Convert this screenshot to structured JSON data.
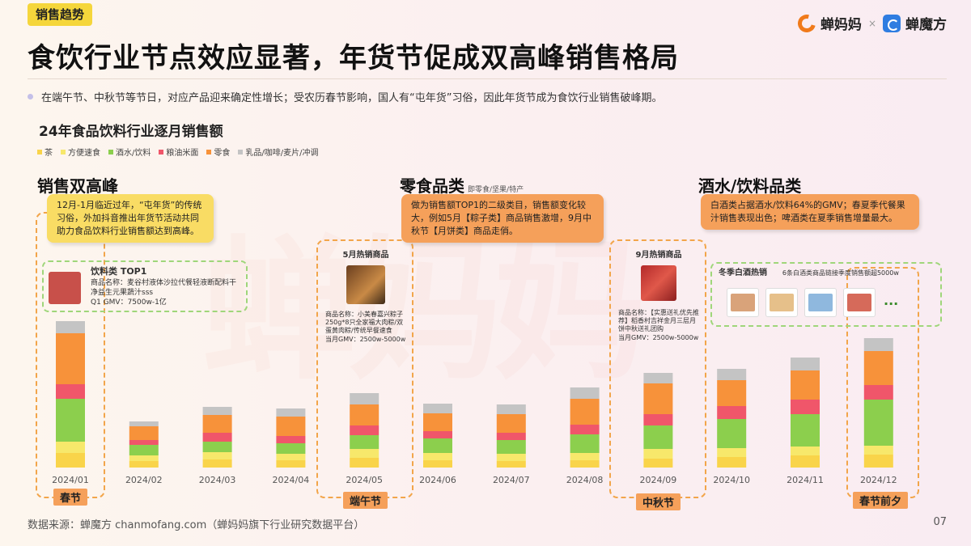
{
  "header": {
    "tag": "销售趋势",
    "brand1": "蝉妈妈",
    "brand_sep": "×",
    "brand2": "蝉魔方",
    "title": "食饮行业节点效应显著，年货节促成双高峰销售格局",
    "bullet": "在端午节、中秋节等节日，对应产品迎来确定性增长；受农历春节影响，国人有“屯年货”习俗，因此年货节成为食饮行业销售破峰期。"
  },
  "watermark": "蝉妈妈",
  "chart_data": {
    "type": "bar",
    "stacked": true,
    "title": "24年食品饮料行业逐月销售额",
    "categories": [
      "2024/01",
      "2024/02",
      "2024/03",
      "2024/04",
      "2024/05",
      "2024/06",
      "2024/07",
      "2024/08",
      "2024/09",
      "2024/10",
      "2024/11",
      "2024/12"
    ],
    "series": [
      {
        "name": "茶",
        "color": "#f9d44a",
        "values": [
          18,
          8,
          10,
          9,
          12,
          9,
          8,
          9,
          11,
          13,
          15,
          16
        ]
      },
      {
        "name": "方便速食",
        "color": "#f7e86b",
        "values": [
          14,
          7,
          9,
          8,
          11,
          9,
          9,
          9,
          12,
          11,
          11,
          11
        ]
      },
      {
        "name": "酒水/饮料",
        "color": "#8ccf4d",
        "values": [
          53,
          13,
          13,
          13,
          17,
          18,
          17,
          23,
          29,
          36,
          40,
          57
        ]
      },
      {
        "name": "粮油米面",
        "color": "#f0566a",
        "values": [
          18,
          6,
          11,
          9,
          12,
          9,
          9,
          12,
          14,
          16,
          18,
          18
        ]
      },
      {
        "name": "零食",
        "color": "#f7923a",
        "values": [
          63,
          17,
          22,
          24,
          26,
          22,
          23,
          32,
          38,
          32,
          36,
          42
        ]
      },
      {
        "name": "乳品/咖啡/麦片/冲调",
        "color": "#c4c4c4",
        "values": [
          15,
          6,
          10,
          10,
          14,
          12,
          12,
          14,
          13,
          14,
          16,
          16
        ]
      }
    ],
    "ylim": [
      0,
      200
    ]
  },
  "sections": {
    "s1": {
      "title": "销售双高峰",
      "text": "12月-1月临近过年，“屯年货”的传统习俗，外加抖音推出年货节活动共同助力食品饮料行业销售额达到高峰。"
    },
    "s2": {
      "title": "零食品类",
      "sub": "即零食/坚果/特产",
      "text": "做为销售额TOP1的二级类目，销售额变化较大，例如5月【粽子类】商品销售激增，9月中秋节【月饼类】商品走俏。"
    },
    "s3": {
      "title": "酒水/饮料品类",
      "text": "白酒类占据酒水/饮料64%的GMV；春夏季代餐果汁销售表现出色；啤酒类在夏季销售增量最大。"
    }
  },
  "products": {
    "p1": {
      "title": "饮料类 TOP1",
      "name": "商品名称：麦谷村液体沙拉代餐轻液断配料干净益生元果蔬汁sss",
      "gmv": "Q1 GMV：7500w-1亿"
    },
    "p5": {
      "title": "5月热销商品",
      "name": "商品名称：小美春嘉兴粽子250g*8只全家福大肉粽/双蛋黄肉粽/传统早餐速食",
      "gmv": "当月GMV：2500w-5000w"
    },
    "p9": {
      "title": "9月热销商品",
      "name": "商品名称：【实惠送礼优先推荐】稻香村吉祥金月三层月饼中秋送礼团购",
      "gmv": "当月GMV：2500w-5000w"
    },
    "p12": {
      "title": "冬季白酒热销",
      "note": "6条白酒类商品链接季度销售额超5000w",
      "more": "..."
    }
  },
  "festivals": {
    "f1": "春节",
    "f5": "端午节",
    "f9": "中秋节",
    "f12": "春节前夕"
  },
  "footer": {
    "source": "数据来源：蝉魔方 chanmofang.com（蝉妈妈旗下行业研究数据平台）",
    "page": "07"
  }
}
